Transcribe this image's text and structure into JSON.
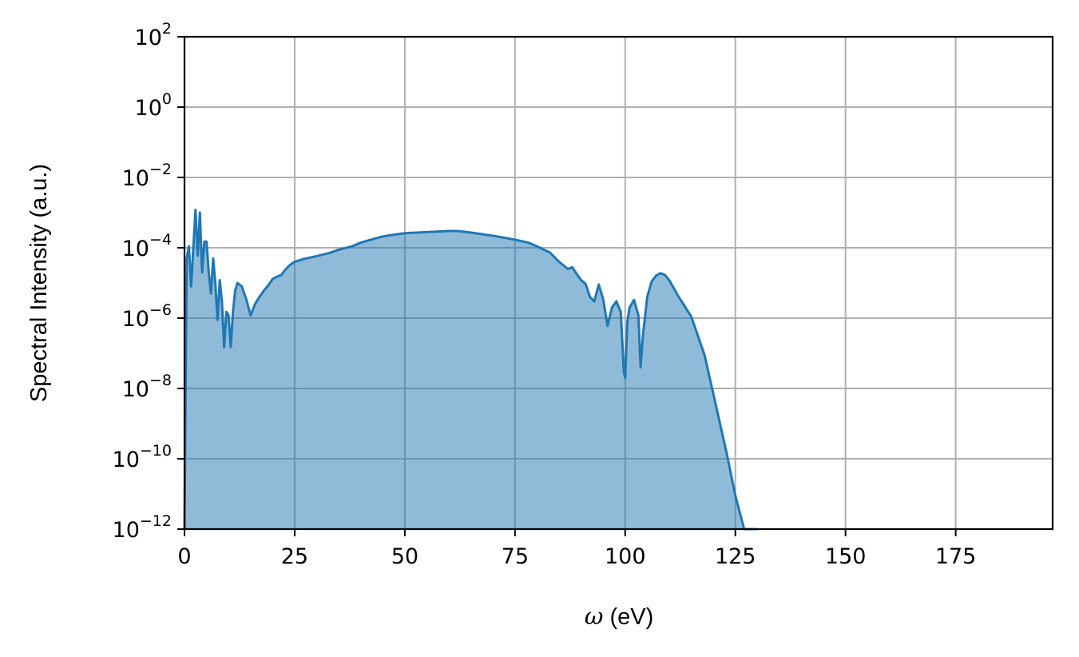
{
  "chart_data": {
    "type": "area",
    "title": "",
    "xlabel_symbol": "ω",
    "xlabel_unit": "(eV)",
    "ylabel": "Spectral Intensity (a.u.)",
    "xlim": [
      0,
      197
    ],
    "ylim": [
      1e-12,
      100
    ],
    "yscale": "log",
    "grid": true,
    "x_ticks": [
      0,
      25,
      50,
      75,
      100,
      125,
      150,
      175
    ],
    "x_tick_labels": [
      "0",
      "25",
      "50",
      "75",
      "100",
      "125",
      "150",
      "175"
    ],
    "y_ticks": [
      {
        "base": "10",
        "exp": "2",
        "value": 100
      },
      {
        "base": "10",
        "exp": "0",
        "value": 1
      },
      {
        "base": "10",
        "exp": "−2",
        "value": 0.01
      },
      {
        "base": "10",
        "exp": "−4",
        "value": 0.0001
      },
      {
        "base": "10",
        "exp": "−6",
        "value": 1e-06
      },
      {
        "base": "10",
        "exp": "−8",
        "value": 1e-08
      },
      {
        "base": "10",
        "exp": "−10",
        "value": 1e-10
      },
      {
        "base": "10",
        "exp": "−12",
        "value": 1e-12
      }
    ],
    "series": [
      {
        "color": "#1f77b4",
        "fill_color": "#1f77b4",
        "fill_opacity": 0.5,
        "x": [
          0,
          0.5,
          1,
          1.5,
          2,
          2.5,
          3,
          3.5,
          4,
          4.5,
          5,
          5.5,
          6,
          6.5,
          7,
          7.5,
          8,
          8.5,
          9,
          9.5,
          10,
          10.5,
          11,
          11.5,
          12,
          13,
          14,
          15,
          16,
          17,
          18,
          19,
          20,
          21,
          22,
          23,
          24,
          25,
          27,
          30,
          33,
          35,
          38,
          40,
          43,
          45,
          48,
          50,
          55,
          60,
          62,
          65,
          70,
          75,
          78,
          80,
          83,
          85,
          87,
          88,
          89,
          90,
          91,
          92,
          93,
          94,
          95,
          96,
          97,
          98,
          99,
          99.7,
          100,
          100.5,
          101,
          102,
          103,
          103.5,
          104,
          105,
          106,
          107,
          108,
          109,
          110,
          112,
          115,
          118,
          120,
          123,
          125,
          127,
          130
        ],
        "y": [
          1e-12,
          5e-05,
          0.00011,
          8e-06,
          0.0001,
          0.0012,
          6e-05,
          0.001,
          2e-05,
          0.00015,
          0.00015,
          2e-05,
          5e-06,
          5e-05,
          1e-05,
          9e-07,
          1.2e-05,
          3e-06,
          1.5e-07,
          1.5e-06,
          1.2e-06,
          1.5e-07,
          1.5e-06,
          6e-06,
          1e-05,
          8e-06,
          3.5e-06,
          1.2e-06,
          2.5e-06,
          4e-06,
          6e-06,
          8.5e-06,
          1.3e-05,
          1.5e-05,
          1.7e-05,
          2.5e-05,
          3.3e-05,
          4e-05,
          4.8e-05,
          5.8e-05,
          7.2e-05,
          8.8e-05,
          0.00011,
          0.00014,
          0.00018,
          0.00021,
          0.00024,
          0.00026,
          0.00028,
          0.0003,
          0.0003,
          0.00027,
          0.00022,
          0.00017,
          0.00014,
          0.00011,
          7.2e-05,
          4e-05,
          2.5e-05,
          2.8e-05,
          1.8e-05,
          1.2e-05,
          9.5e-06,
          4e-06,
          3e-06,
          9e-06,
          3.5e-06,
          6e-07,
          2e-06,
          3e-06,
          1.5e-06,
          3e-08,
          2e-08,
          8e-07,
          2e-06,
          3.3e-06,
          1.2e-06,
          4e-08,
          3e-07,
          4e-06,
          1.1e-05,
          1.6e-05,
          1.9e-05,
          1.7e-05,
          1.2e-05,
          4.3e-06,
          1.1e-06,
          9e-08,
          7e-09,
          1.5e-10,
          9e-12,
          6e-13,
          1e-12
        ]
      }
    ]
  }
}
